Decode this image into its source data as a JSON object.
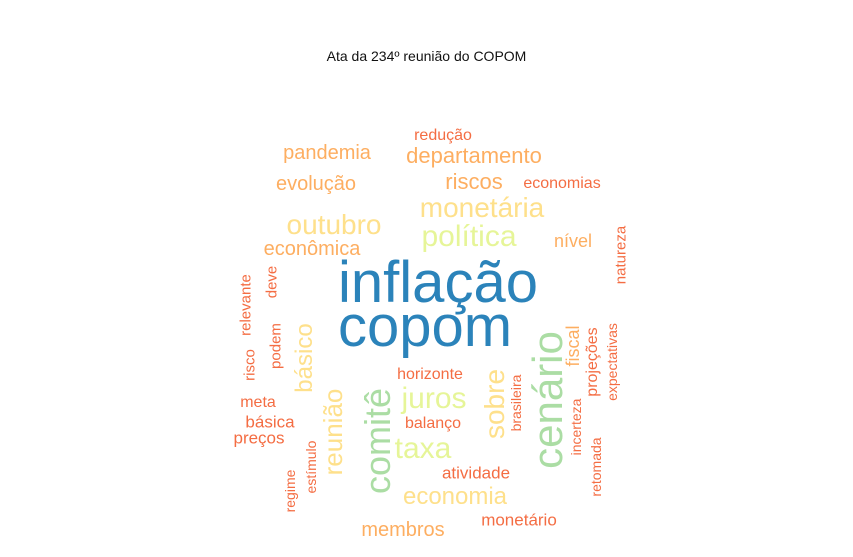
{
  "chart_data": {
    "type": "wordcloud",
    "title": "Ata da 234º reunião do COPOM",
    "palette": {
      "tier1": "#2b83ba",
      "tier2": "#abdda4",
      "tier3": "#e6f598",
      "tier4": "#fee08b",
      "tier5": "#fdae61",
      "tier6": "#f46d43"
    },
    "words": [
      {
        "text": "inflação",
        "tier": "tier1",
        "rank": 1
      },
      {
        "text": "copom",
        "tier": "tier1",
        "rank": 2
      },
      {
        "text": "cenário",
        "tier": "tier2",
        "rank": 3
      },
      {
        "text": "comitê",
        "tier": "tier2",
        "rank": 4
      },
      {
        "text": "política",
        "tier": "tier3",
        "rank": 5
      },
      {
        "text": "juros",
        "tier": "tier3",
        "rank": 6
      },
      {
        "text": "taxa",
        "tier": "tier3",
        "rank": 7
      },
      {
        "text": "monetária",
        "tier": "tier4",
        "rank": 8
      },
      {
        "text": "outubro",
        "tier": "tier4",
        "rank": 9
      },
      {
        "text": "reunião",
        "tier": "tier4",
        "rank": 10
      },
      {
        "text": "sobre",
        "tier": "tier4",
        "rank": 11
      },
      {
        "text": "economia",
        "tier": "tier4",
        "rank": 12
      },
      {
        "text": "básico",
        "tier": "tier4",
        "rank": 13
      },
      {
        "text": "departamento",
        "tier": "tier5",
        "rank": 14
      },
      {
        "text": "pandemia",
        "tier": "tier5",
        "rank": 15
      },
      {
        "text": "evolução",
        "tier": "tier5",
        "rank": 16
      },
      {
        "text": "riscos",
        "tier": "tier5",
        "rank": 17
      },
      {
        "text": "econômica",
        "tier": "tier5",
        "rank": 18
      },
      {
        "text": "nível",
        "tier": "tier5",
        "rank": 19
      },
      {
        "text": "fiscal",
        "tier": "tier5",
        "rank": 20
      },
      {
        "text": "membros",
        "tier": "tier5",
        "rank": 21
      },
      {
        "text": "redução",
        "tier": "tier6",
        "rank": 22
      },
      {
        "text": "economias",
        "tier": "tier6",
        "rank": 23
      },
      {
        "text": "natureza",
        "tier": "tier6",
        "rank": 24
      },
      {
        "text": "relevante",
        "tier": "tier6",
        "rank": 25
      },
      {
        "text": "deve",
        "tier": "tier6",
        "rank": 26
      },
      {
        "text": "risco",
        "tier": "tier6",
        "rank": 27
      },
      {
        "text": "podem",
        "tier": "tier6",
        "rank": 28
      },
      {
        "text": "horizonte",
        "tier": "tier6",
        "rank": 29
      },
      {
        "text": "brasileira",
        "tier": "tier6",
        "rank": 30
      },
      {
        "text": "projeções",
        "tier": "tier6",
        "rank": 31
      },
      {
        "text": "expectativas",
        "tier": "tier6",
        "rank": 32
      },
      {
        "text": "meta",
        "tier": "tier6",
        "rank": 33
      },
      {
        "text": "básica",
        "tier": "tier6",
        "rank": 34
      },
      {
        "text": "balanço",
        "tier": "tier6",
        "rank": 35
      },
      {
        "text": "preços",
        "tier": "tier6",
        "rank": 36
      },
      {
        "text": "incerteza",
        "tier": "tier6",
        "rank": 37
      },
      {
        "text": "estímulo",
        "tier": "tier6",
        "rank": 38
      },
      {
        "text": "regime",
        "tier": "tier6",
        "rank": 39
      },
      {
        "text": "atividade",
        "tier": "tier6",
        "rank": 40
      },
      {
        "text": "retomada",
        "tier": "tier6",
        "rank": 41
      },
      {
        "text": "monetário",
        "tier": "tier6",
        "rank": 42
      }
    ]
  }
}
